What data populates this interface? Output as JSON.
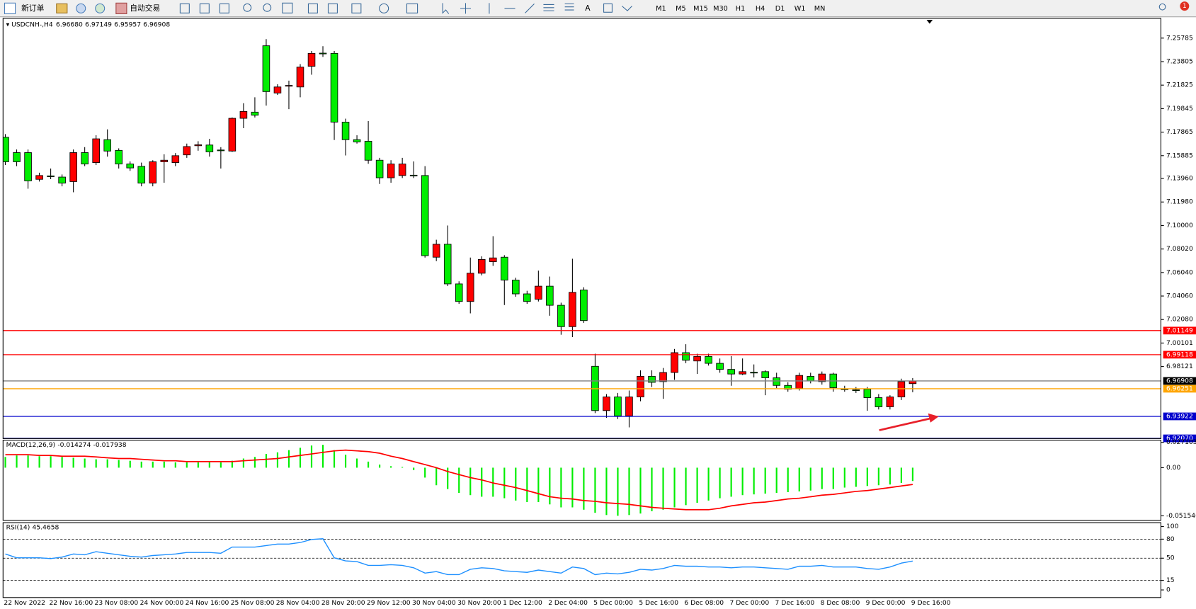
{
  "toolbar": {
    "new_order": "新订单",
    "auto_trading": "自动交易",
    "timeframes": [
      "M1",
      "M5",
      "M15",
      "M30",
      "H1",
      "H4",
      "D1",
      "W1",
      "MN"
    ],
    "notifications": 1
  },
  "chart_data": [
    {
      "type": "candlestick",
      "symbol": "USDCNH-,H4",
      "info_labels": [
        "6.96680",
        "6.97149",
        "6.95957",
        "6.96908"
      ],
      "categories": [
        "22 Nov 2022",
        null,
        null,
        null,
        "22 Nov 16:00",
        null,
        null,
        null,
        "23 Nov 08:00",
        null,
        null,
        null,
        "24 Nov 00:00",
        null,
        null,
        null,
        "24 Nov 16:00",
        null,
        null,
        null,
        "25 Nov 08:00",
        null,
        null,
        null,
        "28 Nov 04:00",
        null,
        null,
        null,
        "28 Nov 20:00",
        null,
        null,
        null,
        "29 Nov 12:00",
        null,
        null,
        null,
        "30 Nov 04:00",
        null,
        null,
        null,
        "30 Nov 20:00",
        null,
        null,
        null,
        "1 Dec 12:00",
        null,
        null,
        null,
        "2 Dec 04:00",
        null,
        null,
        null,
        "5 Dec 00:00",
        null,
        null,
        null,
        "5 Dec 16:00",
        null,
        null,
        null,
        "6 Dec 08:00",
        null,
        null,
        null,
        "7 Dec 00:00",
        null,
        null,
        null,
        "7 Dec 16:00",
        null,
        null,
        null,
        "8 Dec 08:00",
        null,
        null,
        null,
        "9 Dec 00:00",
        null,
        null,
        null,
        "9 Dec 16:00"
      ],
      "open": [
        7.1743,
        7.1614,
        7.1614,
        7.1389,
        7.1418,
        7.1408,
        7.137,
        7.1614,
        7.153,
        7.1723,
        7.1633,
        7.1518,
        7.1498,
        7.1357,
        7.1537,
        7.153,
        7.1595,
        7.1672,
        7.1678,
        7.1636,
        7.1627,
        7.1903,
        7.1955,
        7.2514,
        7.2116,
        7.2175,
        7.2167,
        7.2341,
        7.2452,
        7.245,
        7.1871,
        7.1723,
        7.171,
        7.155,
        7.1402,
        7.1421,
        7.1424,
        7.1421,
        7.0733,
        7.0842,
        7.0508,
        7.036,
        7.0598,
        7.0695,
        7.0733,
        7.054,
        7.0424,
        7.0379,
        7.0489,
        7.0328,
        7.0148,
        7.0457,
        6.9814,
        6.9441,
        6.9556,
        6.9396,
        6.9556,
        6.973,
        6.9685,
        6.9762,
        6.9929,
        6.9859,
        6.9897,
        6.9839,
        6.9788,
        6.9749,
        6.9764,
        6.9769,
        6.9717,
        6.9653,
        6.9627,
        6.973,
        6.9685,
        6.9749,
        6.9624,
        6.9616,
        6.9621,
        6.955,
        6.9473,
        6.9556,
        6.9668
      ],
      "high": [
        7.177,
        7.164,
        7.164,
        7.1445,
        7.148,
        7.143,
        7.164,
        7.166,
        7.176,
        7.181,
        7.165,
        7.154,
        7.153,
        7.155,
        7.16,
        7.161,
        7.169,
        7.171,
        7.173,
        7.166,
        7.191,
        7.203,
        7.208,
        7.257,
        7.219,
        7.222,
        7.236,
        7.247,
        7.251,
        7.247,
        7.19,
        7.176,
        7.188,
        7.157,
        7.155,
        7.157,
        7.154,
        7.15,
        7.088,
        7.1,
        7.053,
        7.073,
        7.074,
        7.091,
        7.075,
        7.056,
        7.045,
        7.062,
        7.057,
        7.035,
        7.072,
        7.048,
        6.992,
        6.958,
        6.959,
        6.961,
        6.978,
        6.978,
        6.98,
        6.996,
        7.0,
        6.992,
        6.992,
        6.988,
        6.99,
        6.988,
        6.983,
        6.978,
        6.976,
        6.968,
        6.976,
        6.976,
        6.977,
        6.976,
        6.965,
        6.964,
        6.964,
        6.958,
        6.957,
        6.971,
        6.97149
      ],
      "low": [
        7.151,
        7.15,
        7.131,
        7.137,
        7.139,
        7.133,
        7.128,
        7.15,
        7.151,
        7.158,
        7.148,
        7.146,
        7.133,
        7.133,
        7.136,
        7.15,
        7.157,
        7.163,
        7.158,
        7.148,
        7.162,
        7.182,
        7.191,
        7.201,
        7.21,
        7.198,
        7.208,
        7.227,
        7.242,
        7.172,
        7.159,
        7.169,
        7.152,
        7.135,
        7.136,
        7.14,
        7.14,
        7.073,
        7.07,
        7.049,
        7.034,
        7.026,
        7.058,
        7.066,
        7.033,
        7.04,
        7.034,
        7.036,
        7.024,
        7.008,
        7.006,
        7.018,
        6.942,
        6.938,
        6.937,
        6.93,
        6.952,
        6.964,
        6.954,
        6.97,
        6.984,
        6.975,
        6.982,
        6.976,
        6.965,
        6.974,
        6.972,
        6.957,
        6.963,
        6.96,
        6.961,
        6.967,
        6.966,
        6.96,
        6.96,
        6.959,
        6.944,
        6.945,
        6.945,
        6.953,
        6.95957
      ],
      "close": [
        7.1537,
        7.1537,
        7.1376,
        7.1421,
        7.1412,
        7.1357,
        7.1614,
        7.1518,
        7.173,
        7.1627,
        7.1518,
        7.1485,
        7.1357,
        7.1537,
        7.155,
        7.1588,
        7.1665,
        7.168,
        7.162,
        7.163,
        7.1903,
        7.1961,
        7.1929,
        7.2128,
        7.2167,
        7.218,
        7.2334,
        7.245,
        7.2448,
        7.1871,
        7.1723,
        7.1704,
        7.155,
        7.1402,
        7.1518,
        7.1518,
        7.1418,
        7.0746,
        7.0842,
        7.0508,
        7.036,
        7.0598,
        7.0714,
        7.0727,
        7.054,
        7.0424,
        7.036,
        7.0489,
        7.0328,
        7.0148,
        7.0437,
        7.0199,
        6.9441,
        6.9556,
        6.9396,
        6.9556,
        6.973,
        6.9679,
        6.9762,
        6.9929,
        6.9865,
        6.9897,
        6.9839,
        6.9788,
        6.9749,
        6.9769,
        6.976,
        6.9717,
        6.9653,
        6.9621,
        6.9737,
        6.9691,
        6.9749,
        6.9634,
        6.962,
        6.9612,
        6.955,
        6.9473,
        6.9556,
        6.9685,
        6.96908
      ],
      "up_color": "#ff0000",
      "down_color": "#00ee00",
      "ylim": [
        6.9205,
        7.2745
      ],
      "yticks": [
        7.25785,
        7.23805,
        7.21825,
        7.19845,
        7.17865,
        7.15885,
        {
          "value": 7.1396,
          "label": "7.13960"
        },
        {
          "value": 7.1198,
          "label": "7.11980"
        },
        {
          "value": 7.1,
          "label": "7.10000"
        },
        {
          "value": 7.0802,
          "label": "7.08020"
        },
        {
          "value": 7.0604,
          "label": "7.06040"
        },
        {
          "value": 7.0406,
          "label": "7.04060"
        },
        {
          "value": 7.0208,
          "label": "7.02080"
        },
        7.00101,
        6.98121
      ],
      "hlines": [
        {
          "value": 7.01149,
          "color": "#ff0000"
        },
        {
          "value": 6.99118,
          "color": "#ff0000"
        },
        {
          "value": 6.96908,
          "color": "#808080"
        },
        {
          "value": 6.96251,
          "color": "#ffa500"
        },
        {
          "value": 6.93922,
          "color": "#0000cc"
        },
        {
          "value": 6.9207,
          "label": "6.92070",
          "color": "#0000cc"
        }
      ]
    },
    {
      "type": "macd",
      "title": "MACD(12,26,9)",
      "series": [
        {
          "style": "bar",
          "color": "#00ee00",
          "values": [
            0.0115,
            0.0131,
            0.0131,
            0.0123,
            0.0123,
            0.0115,
            0.0106,
            0.0098,
            0.009,
            0.009,
            0.0082,
            0.0074,
            0.0065,
            0.0065,
            0.0065,
            0.0057,
            0.0057,
            0.0057,
            0.0057,
            0.0057,
            0.0074,
            0.0098,
            0.0115,
            0.0147,
            0.0164,
            0.0188,
            0.0213,
            0.0237,
            0.0245,
            0.0188,
            0.0139,
            0.0098,
            0.0065,
            0.0033,
            0.0016,
            0.0008,
            -0.0025,
            -0.0106,
            -0.0188,
            -0.0229,
            -0.027,
            -0.0294,
            -0.0311,
            -0.0311,
            -0.0327,
            -0.0352,
            -0.0368,
            -0.0368,
            -0.0393,
            -0.0425,
            -0.0425,
            -0.045,
            -0.0483,
            -0.0507,
            -0.0515,
            -0.0507,
            -0.0491,
            -0.0466,
            -0.045,
            -0.0425,
            -0.0401,
            -0.0376,
            -0.0352,
            -0.0327,
            -0.0311,
            -0.0294,
            -0.0286,
            -0.0278,
            -0.027,
            -0.0262,
            -0.0254,
            -0.0245,
            -0.0229,
            -0.0229,
            -0.0213,
            -0.0205,
            -0.0196,
            -0.0188,
            -0.018,
            -0.0164,
            -0.014274
          ]
        },
        {
          "style": "line",
          "color": "#ff0000",
          "values": [
            0.0139,
            0.0139,
            0.0139,
            0.0131,
            0.0131,
            0.0123,
            0.0123,
            0.0123,
            0.0115,
            0.0106,
            0.0098,
            0.0098,
            0.009,
            0.0082,
            0.0074,
            0.0074,
            0.0065,
            0.0065,
            0.0065,
            0.0065,
            0.0065,
            0.0074,
            0.0082,
            0.009,
            0.0098,
            0.0115,
            0.0131,
            0.0147,
            0.0164,
            0.018,
            0.0188,
            0.018,
            0.0172,
            0.0155,
            0.0123,
            0.0098,
            0.0065,
            0.0033,
            0,
            -0.0041,
            -0.0074,
            -0.0106,
            -0.0131,
            -0.0164,
            -0.0188,
            -0.0213,
            -0.0245,
            -0.0278,
            -0.0311,
            -0.0327,
            -0.0335,
            -0.0352,
            -0.036,
            -0.0376,
            -0.0384,
            -0.0393,
            -0.0409,
            -0.0425,
            -0.0434,
            -0.0442,
            -0.045,
            -0.045,
            -0.045,
            -0.0434,
            -0.0409,
            -0.0393,
            -0.0376,
            -0.0368,
            -0.0352,
            -0.0335,
            -0.0327,
            -0.0311,
            -0.0294,
            -0.0286,
            -0.027,
            -0.0254,
            -0.0245,
            -0.0229,
            -0.0213,
            -0.0196,
            -0.017938
          ]
        }
      ],
      "ylim": [
        -0.0564,
        0.0295
      ],
      "yticks": [
        0.027103,
        {
          "value": 0,
          "label": "0.00"
        },
        -0.051546
      ]
    },
    {
      "type": "line",
      "title": "RSI(14)",
      "color": "#1e90ff",
      "values": [
        56.6,
        50.6,
        50.6,
        50.6,
        49.4,
        51.8,
        56.6,
        55.4,
        60.2,
        57.8,
        55.4,
        53.0,
        51.8,
        54.2,
        55.4,
        56.6,
        59.0,
        59.0,
        59.0,
        57.8,
        67.5,
        67.5,
        67.5,
        69.9,
        72.3,
        72.3,
        74.7,
        79.5,
        80.7,
        50.6,
        45.8,
        44.6,
        38.6,
        38.6,
        39.8,
        38.6,
        34.9,
        26.5,
        28.9,
        24.1,
        24.1,
        32.5,
        34.9,
        33.7,
        30.1,
        28.9,
        27.7,
        31.3,
        28.9,
        26.5,
        36.1,
        33.7,
        24.1,
        26.5,
        25.3,
        27.7,
        32.5,
        31.3,
        33.7,
        38.6,
        37.3,
        37.3,
        36.1,
        36.1,
        34.9,
        36.1,
        36.1,
        34.9,
        33.7,
        32.5,
        37.3,
        37.3,
        38.6,
        36.1,
        36.1,
        36.1,
        33.7,
        32.5,
        36.1,
        42.2,
        45.4658
      ],
      "ylim": [
        -12,
        106
      ],
      "yticks": [
        100,
        80,
        50,
        15,
        0
      ],
      "levels": [
        80,
        50,
        15
      ]
    }
  ]
}
